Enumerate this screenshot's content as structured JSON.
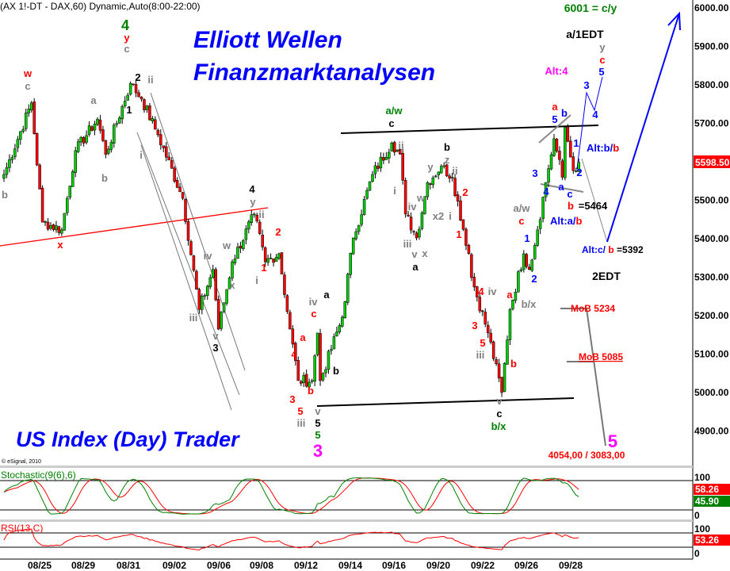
{
  "header": {
    "title": "(AX 1!-DT - DAX,60) Dynamic,Auto(8:00-22:00)",
    "copyright": "© eSignal, 2010"
  },
  "branding": {
    "line1": "Elliott Wellen",
    "line2": "Finanzmarktanalysen",
    "footer": "US Index (Day) Trader"
  },
  "colors": {
    "up": "#00cc00",
    "down": "#ff0000",
    "blue": "#0000ff",
    "red": "#ff0000",
    "gray": "#808080",
    "green": "#008000",
    "magenta": "#ff00ff",
    "black": "#000000"
  },
  "chart_data": [
    {
      "type": "candlestick",
      "symbol": "DAX",
      "interval": "60",
      "ylim": [
        4850,
        6020
      ],
      "y_ticks": [
        "6000.00",
        "5900.00",
        "5800.00",
        "5700.00",
        "5500.00",
        "5400.00",
        "5300.00",
        "5200.00",
        "5100.00",
        "5000.00",
        "4900.00"
      ],
      "x_ticks": [
        "08/25",
        "08/29",
        "08/31",
        "09/02",
        "09/06",
        "09/08",
        "09/12",
        "09/14",
        "09/16",
        "09/20",
        "09/22",
        "09/26",
        "09/28"
      ],
      "last_price": "5598.50",
      "price_path": [
        [
          0,
          5567
        ],
        [
          10,
          5753
        ],
        [
          14,
          5443
        ],
        [
          21,
          5423
        ],
        [
          26,
          5629
        ],
        [
          34,
          5711
        ],
        [
          37,
          5619
        ],
        [
          46,
          5804
        ],
        [
          50,
          5763
        ],
        [
          56,
          5670
        ],
        [
          65,
          5505
        ],
        [
          71,
          5216
        ],
        [
          76,
          5320
        ],
        [
          78,
          5165
        ],
        [
          83,
          5340
        ],
        [
          91,
          5464
        ],
        [
          95,
          5340
        ],
        [
          100,
          5361
        ],
        [
          104,
          5165
        ],
        [
          107,
          5031
        ],
        [
          112,
          5031
        ],
        [
          114,
          5155
        ],
        [
          115,
          5031
        ],
        [
          123,
          5196
        ],
        [
          127,
          5402
        ],
        [
          134,
          5567
        ],
        [
          141,
          5649
        ],
        [
          144,
          5620
        ],
        [
          146,
          5464
        ],
        [
          150,
          5402
        ],
        [
          154,
          5546
        ],
        [
          159,
          5588
        ],
        [
          163,
          5560
        ],
        [
          169,
          5361
        ],
        [
          170,
          5299
        ],
        [
          176,
          5155
        ],
        [
          181,
          5000
        ],
        [
          184,
          5216
        ],
        [
          189,
          5361
        ],
        [
          191,
          5320
        ],
        [
          194,
          5423
        ],
        [
          197,
          5546
        ],
        [
          200,
          5660
        ],
        [
          203,
          5560
        ],
        [
          204,
          5690
        ],
        [
          207,
          5577
        ],
        [
          209,
          5598.5
        ]
      ],
      "trend_lines": "wave channels, red x-4 line, black a/w and b/x horizontals, projected blue path to 6000",
      "annotations": [
        {
          "text": "w",
          "color": "red"
        },
        {
          "text": "c",
          "color": "gray"
        },
        {
          "text": "b",
          "color": "gray"
        },
        {
          "text": "a",
          "color": "gray"
        },
        {
          "text": "b",
          "color": "gray"
        },
        {
          "text": "x",
          "color": "red"
        },
        {
          "text": "c",
          "color": "gray"
        },
        {
          "text": "y",
          "color": "red"
        },
        {
          "text": "4",
          "color": "green"
        },
        {
          "text": "2",
          "color": "black"
        },
        {
          "text": "1",
          "color": "black"
        },
        {
          "text": "ii",
          "color": "gray"
        },
        {
          "text": "i",
          "color": "gray"
        },
        {
          "text": "iii",
          "color": "gray"
        },
        {
          "text": "iv",
          "color": "gray"
        },
        {
          "text": "v",
          "color": "gray"
        },
        {
          "text": "3",
          "color": "black"
        },
        {
          "text": "w",
          "color": "gray"
        },
        {
          "text": "x",
          "color": "gray"
        },
        {
          "text": "4",
          "color": "black"
        },
        {
          "text": "y",
          "color": "gray"
        },
        {
          "text": "ii",
          "color": "gray"
        },
        {
          "text": "1",
          "color": "red"
        },
        {
          "text": "i",
          "color": "gray"
        },
        {
          "text": "2",
          "color": "red"
        },
        {
          "text": "4",
          "color": "red"
        },
        {
          "text": "3",
          "color": "red"
        },
        {
          "text": "5",
          "color": "red"
        },
        {
          "text": "iii",
          "color": "gray"
        },
        {
          "text": "a",
          "color": "red"
        },
        {
          "text": "iv",
          "color": "gray"
        },
        {
          "text": "c",
          "color": "red"
        },
        {
          "text": "b",
          "color": "red"
        },
        {
          "text": "v",
          "color": "gray"
        },
        {
          "text": "5",
          "color": "black"
        },
        {
          "text": "5",
          "color": "green"
        },
        {
          "text": "3",
          "color": "magenta"
        },
        {
          "text": "a/w",
          "color": "green"
        },
        {
          "text": "c",
          "color": "black"
        },
        {
          "text": "ii",
          "color": "gray"
        },
        {
          "text": "i",
          "color": "gray"
        },
        {
          "text": "a",
          "color": "black"
        },
        {
          "text": "b",
          "color": "black"
        },
        {
          "text": "iv",
          "color": "gray"
        },
        {
          "text": "iii",
          "color": "gray"
        },
        {
          "text": "v",
          "color": "gray"
        },
        {
          "text": "x",
          "color": "gray"
        },
        {
          "text": "a",
          "color": "black"
        },
        {
          "text": "w",
          "color": "gray"
        },
        {
          "text": "x2",
          "color": "gray"
        },
        {
          "text": "y",
          "color": "gray"
        },
        {
          "text": "z",
          "color": "gray"
        },
        {
          "text": "b",
          "color": "black"
        },
        {
          "text": "i",
          "color": "gray"
        },
        {
          "text": "ii",
          "color": "gray"
        },
        {
          "text": "2",
          "color": "red"
        },
        {
          "text": "1",
          "color": "red"
        },
        {
          "text": "4",
          "color": "red"
        },
        {
          "text": "iv",
          "color": "gray"
        },
        {
          "text": "3",
          "color": "red"
        },
        {
          "text": "5",
          "color": "red"
        },
        {
          "text": "iii",
          "color": "gray"
        },
        {
          "text": "a",
          "color": "red"
        },
        {
          "text": "b",
          "color": "red"
        },
        {
          "text": "v",
          "color": "gray"
        },
        {
          "text": "c",
          "color": "black"
        },
        {
          "text": "b/x",
          "color": "green"
        },
        {
          "text": "a/w",
          "color": "gray"
        },
        {
          "text": "c",
          "color": "red"
        },
        {
          "text": "1",
          "color": "blue"
        },
        {
          "text": "2",
          "color": "blue"
        },
        {
          "text": "b/x",
          "color": "gray"
        },
        {
          "text": "3",
          "color": "blue"
        },
        {
          "text": "4",
          "color": "blue"
        },
        {
          "text": "a",
          "color": "red"
        },
        {
          "text": "5",
          "color": "blue"
        },
        {
          "text": "b",
          "color": "blue"
        },
        {
          "text": "1",
          "color": "blue"
        },
        {
          "text": "2",
          "color": "blue"
        },
        {
          "text": "a",
          "color": "blue"
        },
        {
          "text": "c",
          "color": "blue"
        },
        {
          "text": "b",
          "color": "red"
        },
        {
          "text": "=5464",
          "color": "black"
        },
        {
          "text": "Alt:4",
          "color": "magenta"
        },
        {
          "text": "3",
          "color": "blue"
        },
        {
          "text": "4",
          "color": "blue"
        },
        {
          "text": "5",
          "color": "blue"
        },
        {
          "text": "c",
          "color": "red"
        },
        {
          "text": "y",
          "color": "gray"
        },
        {
          "text": "a/1EDT",
          "color": "black"
        },
        {
          "text": "6001 = c/y",
          "color": "green"
        },
        {
          "text": "2EDT",
          "color": "black"
        },
        {
          "text": "MoB 5234",
          "color": "red"
        },
        {
          "text": "MoB 5085",
          "color": "red"
        },
        {
          "text": "5",
          "color": "magenta"
        },
        {
          "text": "4054,00 / 3083,00",
          "color": "red"
        }
      ],
      "alt_labels": {
        "alt_bb_a": "Alt:b/",
        "alt_bb_b": "b",
        "alt_ab_a": "Alt:a/",
        "alt_ab_b": "b",
        "alt_cb_a": "Alt:c/ ",
        "alt_cb_b": "b",
        "alt_cb_c": " =5392"
      }
    },
    {
      "type": "line",
      "title": "Stochastic(9(6),6)",
      "y_ticks": [
        "100",
        "0"
      ],
      "values_shown": [
        "58.26",
        "45.90"
      ],
      "series_colors": [
        "#008000",
        "#ff0000"
      ]
    },
    {
      "type": "line",
      "title": "RSI(13,C)",
      "y_ticks": [
        "100",
        "0"
      ],
      "value_shown": "53.26",
      "series_colors": [
        "#ff0000"
      ]
    }
  ]
}
